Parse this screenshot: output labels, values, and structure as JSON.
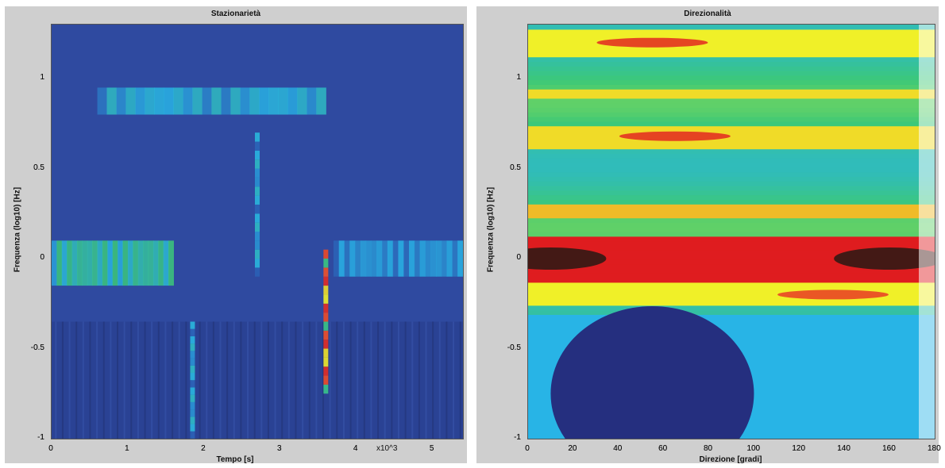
{
  "chart_data": [
    {
      "type": "heatmap",
      "title": "Stazionarietà",
      "xlabel": "Tempo [s]",
      "ylabel": "Frequenza (log10) [Hz]",
      "xlim": [
        0,
        5.4
      ],
      "ylim": [
        -1,
        1.3
      ],
      "x_ticks": [
        "0",
        "1",
        "2",
        "3",
        "4",
        "5"
      ],
      "x_tick_values": [
        0,
        1,
        2,
        3,
        4,
        5
      ],
      "y_ticks": [
        "1",
        "0.5",
        "0",
        "-0.5",
        "-1"
      ],
      "y_tick_values": [
        1,
        0.5,
        0,
        -0.5,
        -1
      ],
      "x_multiplier": "x10^3",
      "colormap": "jet",
      "background_color": "#2f4aa0",
      "bands": [
        {
          "x": [
            0.6,
            3.6
          ],
          "y": [
            0.8,
            0.95
          ],
          "level": 0.35
        },
        {
          "x": [
            0.0,
            1.6
          ],
          "y": [
            -0.15,
            0.1
          ],
          "level": 0.45
        },
        {
          "x": [
            3.7,
            5.4
          ],
          "y": [
            -0.1,
            0.1
          ],
          "level": 0.3
        }
      ],
      "vertical_lines": [
        {
          "x": 1.85,
          "y": [
            -1,
            -0.35
          ],
          "level": 0.35
        },
        {
          "x": 2.7,
          "y": [
            -0.1,
            0.7
          ],
          "level": 0.35
        },
        {
          "x": 3.6,
          "y": [
            -0.75,
            0.05
          ],
          "level": 0.85
        }
      ]
    },
    {
      "type": "heatmap",
      "title": "Direzionalità",
      "xlabel": "Direzione [gradi]",
      "ylabel": "Frequenza (log10) [Hz]",
      "xlim": [
        0,
        180
      ],
      "ylim": [
        -1,
        1.3
      ],
      "x_ticks": [
        "0",
        "20",
        "40",
        "60",
        "80",
        "100",
        "120",
        "140",
        "160",
        "180"
      ],
      "x_tick_values": [
        0,
        20,
        40,
        60,
        80,
        100,
        120,
        140,
        160,
        180
      ],
      "y_ticks": [
        "1",
        "0.5",
        "0",
        "-0.5",
        "-1"
      ],
      "y_tick_values": [
        1,
        0.5,
        0,
        -0.5,
        -1
      ],
      "colormap": "jet",
      "bands": [
        {
          "y": [
            1.12,
            1.28
          ],
          "level": 0.6
        },
        {
          "y": [
            0.9,
            0.95
          ],
          "level": 0.62
        },
        {
          "y": [
            0.6,
            0.75
          ],
          "level": 0.62
        },
        {
          "y": [
            0.22,
            0.3
          ],
          "level": 0.65
        },
        {
          "y": [
            -0.12,
            0.12
          ],
          "level": 0.88
        },
        {
          "y": [
            -0.25,
            -0.12
          ],
          "level": 0.6
        },
        {
          "y": [
            -1,
            -0.3
          ],
          "level": 0.3
        }
      ],
      "hot_spots": [
        {
          "x": 55,
          "y": 1.2,
          "level": 0.85
        },
        {
          "x": 65,
          "y": 0.68,
          "level": 0.85
        },
        {
          "x": 10,
          "y": 0,
          "level": 1.0
        },
        {
          "x": 160,
          "y": 0,
          "level": 1.0
        },
        {
          "x": 135,
          "y": -0.2,
          "level": 0.8
        }
      ],
      "low_region": {
        "x": [
          10,
          100
        ],
        "y": [
          -1,
          -0.3
        ],
        "level": 0.08
      }
    }
  ]
}
